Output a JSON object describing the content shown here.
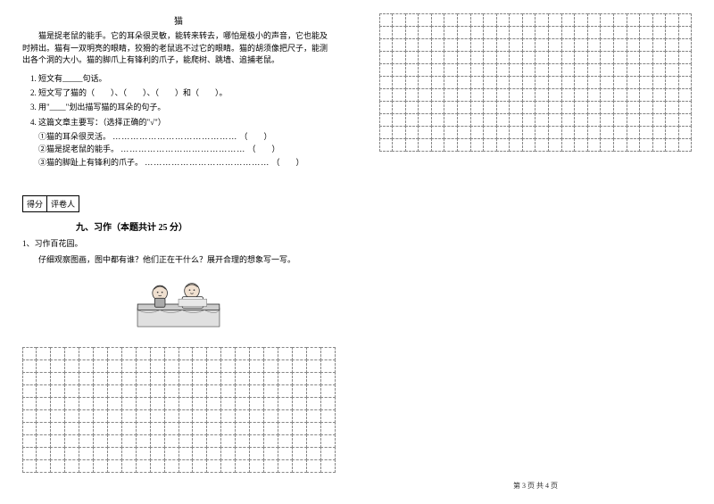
{
  "article": {
    "title": "猫",
    "passage": "猫是捉老鼠的能手。它的耳朵很灵敏，能转来转去，哪怕是极小的声音，它也能及时辨出。猫有一双明亮的眼睛，狡猾的老鼠逃不过它的眼睛。猫的胡须像把尺子，能测出各个洞的大小。猫的脚爪上有锋利的爪子，能爬树、跳墙、追捕老鼠。"
  },
  "questions": {
    "q1": "1. 短文有_____句话。",
    "q2": "2. 短文写了猫的（　　）、（　　）、（　　）和（　　）。",
    "q3": "3. 用\"____\"划出描写猫的耳朵的句子。",
    "q4": "4. 这篇文章主要写：（选择正确的\"√\"）",
    "q4a": "①猫的耳朵很灵活。",
    "q4b": "②猫是捉老鼠的能手。",
    "q4c": "③猫的脚趾上有锋利的爪子。",
    "dotted": "……………………………………",
    "paren": "（　　）"
  },
  "score": {
    "label1": "得分",
    "label2": "评卷人"
  },
  "section9": {
    "title": "九、习作（本题共计 25 分）",
    "sub1": "1、习作百花园。",
    "sub2": "仔细观察图画，图中都有谁？他们正在干什么？展开合理的想象写一写。"
  },
  "footer": "第 3 页 共 4 页",
  "styles": {
    "leftGridRows": 10,
    "leftGridCols": 22,
    "rightGridRows": 11,
    "rightGridCols": 24,
    "gridBorderColor": "#888888",
    "textColor": "#000000",
    "backgroundColor": "#ffffff"
  }
}
